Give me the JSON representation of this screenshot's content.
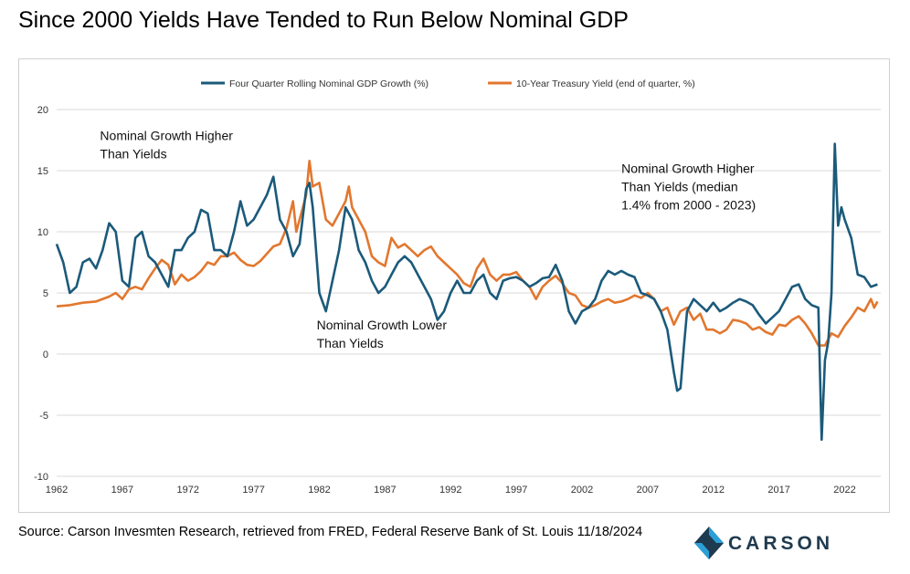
{
  "title": "Since 2000 Yields Have Tended to Run Below Nominal GDP",
  "source": "Source: Carson Invesmten Research, retrieved from FRED, Federal Reserve Bank of St. Louis 11/18/2024",
  "logo_text": "CARSON",
  "colors": {
    "gdp": "#1b5a7a",
    "yield": "#e2772e",
    "grid": "#d9d9d9",
    "logo_dark": "#1e3a4f",
    "logo_light": "#2a9fd8"
  },
  "chart_data": {
    "type": "line",
    "title": "",
    "xlabel": "",
    "ylabel": "",
    "xlim": [
      1962,
      2024.75
    ],
    "ylim": [
      -10,
      20
    ],
    "yticks": [
      -10,
      -5,
      0,
      5,
      10,
      15,
      20
    ],
    "xticks": [
      1962,
      1967,
      1972,
      1977,
      1982,
      1987,
      1992,
      1997,
      2002,
      2007,
      2012,
      2017,
      2022
    ],
    "grid": true,
    "legend_position": "top-center",
    "annotations": [
      {
        "text": "Nominal Growth Higher\nThan Yields",
        "x": 1965.3,
        "y": 17.5
      },
      {
        "text": "Nominal Growth Lower\nThan Yields",
        "x": 1981.8,
        "y": 2.0
      },
      {
        "text": "Nominal Growth Higher\nThan Yields (median\n1.4% from 2000 - 2023)",
        "x": 2005.0,
        "y": 14.8
      }
    ],
    "series": [
      {
        "name": "Four Quarter Rolling Nominal GDP Growth (%)",
        "color": "#1b5a7a",
        "points": [
          [
            1962,
            9
          ],
          [
            1962.5,
            7.5
          ],
          [
            1963,
            5
          ],
          [
            1963.5,
            5.5
          ],
          [
            1964,
            7.5
          ],
          [
            1964.5,
            7.8
          ],
          [
            1965,
            7
          ],
          [
            1965.5,
            8.5
          ],
          [
            1966,
            10.7
          ],
          [
            1966.5,
            10
          ],
          [
            1967,
            6
          ],
          [
            1967.5,
            5.5
          ],
          [
            1968,
            9.5
          ],
          [
            1968.5,
            10
          ],
          [
            1969,
            8
          ],
          [
            1969.5,
            7.5
          ],
          [
            1970,
            6.5
          ],
          [
            1970.5,
            5.5
          ],
          [
            1971,
            8.5
          ],
          [
            1971.5,
            8.5
          ],
          [
            1972,
            9.5
          ],
          [
            1972.5,
            10
          ],
          [
            1973,
            11.8
          ],
          [
            1973.5,
            11.5
          ],
          [
            1974,
            8.5
          ],
          [
            1974.5,
            8.5
          ],
          [
            1975,
            8
          ],
          [
            1975.5,
            10
          ],
          [
            1976,
            12.5
          ],
          [
            1976.5,
            10.5
          ],
          [
            1977,
            11
          ],
          [
            1977.5,
            12
          ],
          [
            1978,
            13
          ],
          [
            1978.5,
            14.5
          ],
          [
            1979,
            11
          ],
          [
            1979.5,
            10
          ],
          [
            1980,
            8
          ],
          [
            1980.5,
            9
          ],
          [
            1981,
            13.5
          ],
          [
            1981.25,
            14
          ],
          [
            1981.5,
            12
          ],
          [
            1981.75,
            8.5
          ],
          [
            1982,
            5
          ],
          [
            1982.5,
            3.5
          ],
          [
            1983,
            6
          ],
          [
            1983.5,
            8.5
          ],
          [
            1984,
            12
          ],
          [
            1984.5,
            11
          ],
          [
            1985,
            8.5
          ],
          [
            1985.5,
            7.5
          ],
          [
            1986,
            6
          ],
          [
            1986.5,
            5
          ],
          [
            1987,
            5.5
          ],
          [
            1987.5,
            6.5
          ],
          [
            1988,
            7.5
          ],
          [
            1988.5,
            8
          ],
          [
            1989,
            7.5
          ],
          [
            1989.5,
            6.5
          ],
          [
            1990,
            5.5
          ],
          [
            1990.5,
            4.5
          ],
          [
            1991,
            2.8
          ],
          [
            1991.5,
            3.5
          ],
          [
            1992,
            5
          ],
          [
            1992.5,
            6
          ],
          [
            1993,
            5
          ],
          [
            1993.5,
            5
          ],
          [
            1994,
            6
          ],
          [
            1994.5,
            6.5
          ],
          [
            1995,
            5
          ],
          [
            1995.5,
            4.5
          ],
          [
            1996,
            6
          ],
          [
            1996.5,
            6.2
          ],
          [
            1997,
            6.3
          ],
          [
            1997.5,
            6
          ],
          [
            1998,
            5.5
          ],
          [
            1998.5,
            5.8
          ],
          [
            1999,
            6.2
          ],
          [
            1999.5,
            6.3
          ],
          [
            2000,
            7.3
          ],
          [
            2000.5,
            6
          ],
          [
            2001,
            3.5
          ],
          [
            2001.5,
            2.5
          ],
          [
            2002,
            3.5
          ],
          [
            2002.5,
            3.8
          ],
          [
            2003,
            4.5
          ],
          [
            2003.5,
            6
          ],
          [
            2004,
            6.8
          ],
          [
            2004.5,
            6.5
          ],
          [
            2005,
            6.8
          ],
          [
            2005.5,
            6.5
          ],
          [
            2006,
            6.3
          ],
          [
            2006.5,
            5
          ],
          [
            2007,
            4.8
          ],
          [
            2007.5,
            4.5
          ],
          [
            2008,
            3.5
          ],
          [
            2008.5,
            2
          ],
          [
            2009,
            -1.5
          ],
          [
            2009.25,
            -3
          ],
          [
            2009.5,
            -2.8
          ],
          [
            2009.75,
            0.5
          ],
          [
            2010,
            3.5
          ],
          [
            2010.5,
            4.5
          ],
          [
            2011,
            4
          ],
          [
            2011.5,
            3.5
          ],
          [
            2012,
            4.2
          ],
          [
            2012.5,
            3.5
          ],
          [
            2013,
            3.8
          ],
          [
            2013.5,
            4.2
          ],
          [
            2014,
            4.5
          ],
          [
            2014.5,
            4.3
          ],
          [
            2015,
            4
          ],
          [
            2015.5,
            3.2
          ],
          [
            2016,
            2.5
          ],
          [
            2016.5,
            3
          ],
          [
            2017,
            3.5
          ],
          [
            2017.5,
            4.5
          ],
          [
            2018,
            5.5
          ],
          [
            2018.5,
            5.7
          ],
          [
            2019,
            4.5
          ],
          [
            2019.5,
            4
          ],
          [
            2020,
            3.8
          ],
          [
            2020.25,
            -7
          ],
          [
            2020.5,
            -0.5
          ],
          [
            2020.75,
            1
          ],
          [
            2021,
            5
          ],
          [
            2021.25,
            17.2
          ],
          [
            2021.5,
            10.5
          ],
          [
            2021.75,
            12
          ],
          [
            2022,
            11
          ],
          [
            2022.5,
            9.5
          ],
          [
            2023,
            6.5
          ],
          [
            2023.5,
            6.3
          ],
          [
            2024,
            5.5
          ],
          [
            2024.5,
            5.7
          ]
        ]
      },
      {
        "name": "10-Year Treasury Yield (end of quarter, %)",
        "color": "#e2772e",
        "points": [
          [
            1962,
            3.9
          ],
          [
            1963,
            4
          ],
          [
            1964,
            4.2
          ],
          [
            1965,
            4.3
          ],
          [
            1966,
            4.7
          ],
          [
            1966.5,
            5
          ],
          [
            1967,
            4.5
          ],
          [
            1967.5,
            5.3
          ],
          [
            1968,
            5.5
          ],
          [
            1968.5,
            5.3
          ],
          [
            1969,
            6.2
          ],
          [
            1969.5,
            7
          ],
          [
            1970,
            7.7
          ],
          [
            1970.5,
            7.3
          ],
          [
            1971,
            5.7
          ],
          [
            1971.5,
            6.5
          ],
          [
            1972,
            6
          ],
          [
            1972.5,
            6.3
          ],
          [
            1973,
            6.8
          ],
          [
            1973.5,
            7.5
          ],
          [
            1974,
            7.3
          ],
          [
            1974.5,
            8
          ],
          [
            1975,
            8
          ],
          [
            1975.5,
            8.3
          ],
          [
            1976,
            7.7
          ],
          [
            1976.5,
            7.3
          ],
          [
            1977,
            7.2
          ],
          [
            1977.5,
            7.6
          ],
          [
            1978,
            8.2
          ],
          [
            1978.5,
            8.8
          ],
          [
            1979,
            9
          ],
          [
            1979.5,
            10.3
          ],
          [
            1980,
            12.5
          ],
          [
            1980.25,
            10
          ],
          [
            1980.5,
            11
          ],
          [
            1981,
            13
          ],
          [
            1981.25,
            15.8
          ],
          [
            1981.5,
            13.7
          ],
          [
            1982,
            14
          ],
          [
            1982.5,
            11
          ],
          [
            1983,
            10.5
          ],
          [
            1983.5,
            11.5
          ],
          [
            1984,
            12.5
          ],
          [
            1984.25,
            13.7
          ],
          [
            1984.5,
            12
          ],
          [
            1985,
            11
          ],
          [
            1985.5,
            10
          ],
          [
            1986,
            8
          ],
          [
            1986.5,
            7.5
          ],
          [
            1987,
            7.2
          ],
          [
            1987.5,
            9.5
          ],
          [
            1988,
            8.7
          ],
          [
            1988.5,
            9
          ],
          [
            1989,
            8.5
          ],
          [
            1989.5,
            8
          ],
          [
            1990,
            8.5
          ],
          [
            1990.5,
            8.8
          ],
          [
            1991,
            8
          ],
          [
            1991.5,
            7.5
          ],
          [
            1992,
            7
          ],
          [
            1992.5,
            6.5
          ],
          [
            1993,
            5.8
          ],
          [
            1993.5,
            5.5
          ],
          [
            1994,
            7
          ],
          [
            1994.5,
            7.8
          ],
          [
            1995,
            6.5
          ],
          [
            1995.5,
            6
          ],
          [
            1996,
            6.5
          ],
          [
            1996.5,
            6.5
          ],
          [
            1997,
            6.7
          ],
          [
            1997.5,
            6
          ],
          [
            1998,
            5.5
          ],
          [
            1998.5,
            4.5
          ],
          [
            1999,
            5.5
          ],
          [
            1999.5,
            6
          ],
          [
            2000,
            6.4
          ],
          [
            2000.5,
            5.8
          ],
          [
            2001,
            5
          ],
          [
            2001.5,
            4.8
          ],
          [
            2002,
            4
          ],
          [
            2002.5,
            3.8
          ],
          [
            2003,
            4
          ],
          [
            2003.5,
            4.3
          ],
          [
            2004,
            4.5
          ],
          [
            2004.5,
            4.2
          ],
          [
            2005,
            4.3
          ],
          [
            2005.5,
            4.5
          ],
          [
            2006,
            4.8
          ],
          [
            2006.5,
            4.6
          ],
          [
            2007,
            5
          ],
          [
            2007.5,
            4.5
          ],
          [
            2008,
            3.5
          ],
          [
            2008.5,
            3.8
          ],
          [
            2009,
            2.4
          ],
          [
            2009.5,
            3.5
          ],
          [
            2010,
            3.8
          ],
          [
            2010.5,
            2.8
          ],
          [
            2011,
            3.3
          ],
          [
            2011.5,
            2
          ],
          [
            2012,
            2
          ],
          [
            2012.5,
            1.7
          ],
          [
            2013,
            2
          ],
          [
            2013.5,
            2.8
          ],
          [
            2014,
            2.7
          ],
          [
            2014.5,
            2.5
          ],
          [
            2015,
            2
          ],
          [
            2015.5,
            2.2
          ],
          [
            2016,
            1.8
          ],
          [
            2016.5,
            1.6
          ],
          [
            2017,
            2.4
          ],
          [
            2017.5,
            2.3
          ],
          [
            2018,
            2.8
          ],
          [
            2018.5,
            3.1
          ],
          [
            2019,
            2.5
          ],
          [
            2019.5,
            1.7
          ],
          [
            2020,
            0.7
          ],
          [
            2020.5,
            0.7
          ],
          [
            2021,
            1.7
          ],
          [
            2021.5,
            1.4
          ],
          [
            2022,
            2.3
          ],
          [
            2022.5,
            3
          ],
          [
            2023,
            3.8
          ],
          [
            2023.5,
            3.5
          ],
          [
            2024,
            4.5
          ],
          [
            2024.25,
            3.8
          ],
          [
            2024.5,
            4.3
          ]
        ]
      }
    ]
  }
}
